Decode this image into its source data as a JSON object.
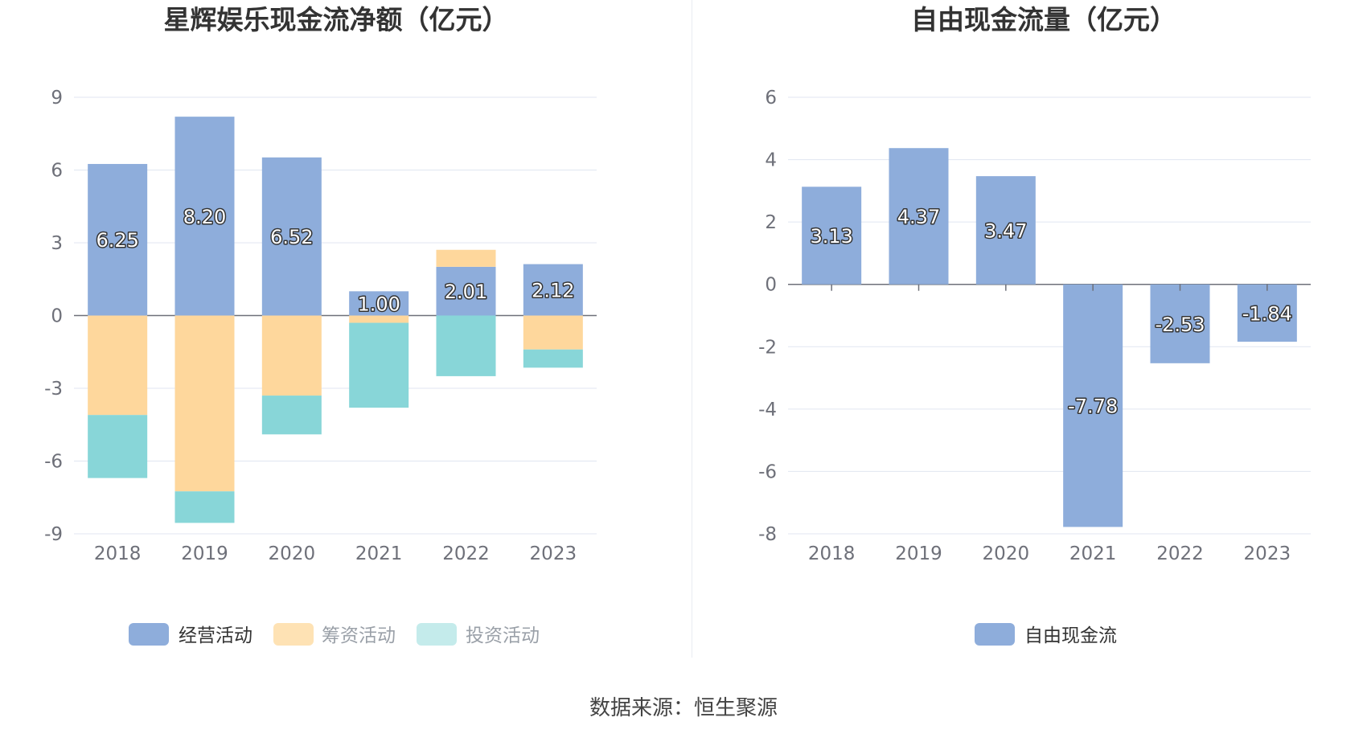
{
  "colors": {
    "operating": "#8eaddb",
    "financing": "#fed79c",
    "investing": "#88d6d8",
    "investing_legend": "#c4ebeb",
    "free_cash_flow": "#8eaddb",
    "grid": "#e0e6f1",
    "axis": "#6e7079"
  },
  "chart_data": [
    {
      "type": "bar",
      "stacked": true,
      "title": "星辉娱乐现金流净额（亿元）",
      "categories": [
        "2018",
        "2019",
        "2020",
        "2021",
        "2022",
        "2023"
      ],
      "series": [
        {
          "name": "经营活动",
          "values": [
            6.25,
            8.2,
            6.52,
            1.0,
            2.01,
            2.12
          ],
          "labels": [
            "6.25",
            "8.20",
            "6.52",
            "1.00",
            "2.01",
            "2.12"
          ]
        },
        {
          "name": "筹资活动",
          "values": [
            -4.1,
            -7.25,
            -3.3,
            -0.3,
            0.7,
            -1.4
          ]
        },
        {
          "name": "投资活动",
          "values": [
            -2.6,
            -1.3,
            -1.6,
            -3.5,
            -2.5,
            -0.75
          ]
        }
      ],
      "yticks": [
        "9",
        "6",
        "3",
        "0",
        "-3",
        "-6",
        "-9"
      ],
      "ylim": [
        -9,
        9
      ],
      "grid": true,
      "legend": "bottom-center"
    },
    {
      "type": "bar",
      "title": "自由现金流量（亿元）",
      "categories": [
        "2018",
        "2019",
        "2020",
        "2021",
        "2022",
        "2023"
      ],
      "series": [
        {
          "name": "自由现金流",
          "values": [
            3.13,
            4.37,
            3.47,
            -7.78,
            -2.53,
            -1.84
          ],
          "labels": [
            "3.13",
            "4.37",
            "3.47",
            "-7.78",
            "-2.53",
            "-1.84"
          ]
        }
      ],
      "yticks": [
        "6",
        "4",
        "2",
        "0",
        "-2",
        "-4",
        "-6",
        "-8"
      ],
      "ylim": [
        -8,
        6
      ],
      "grid": true,
      "legend": "bottom-center"
    }
  ],
  "footer": "数据来源：恒生聚源"
}
